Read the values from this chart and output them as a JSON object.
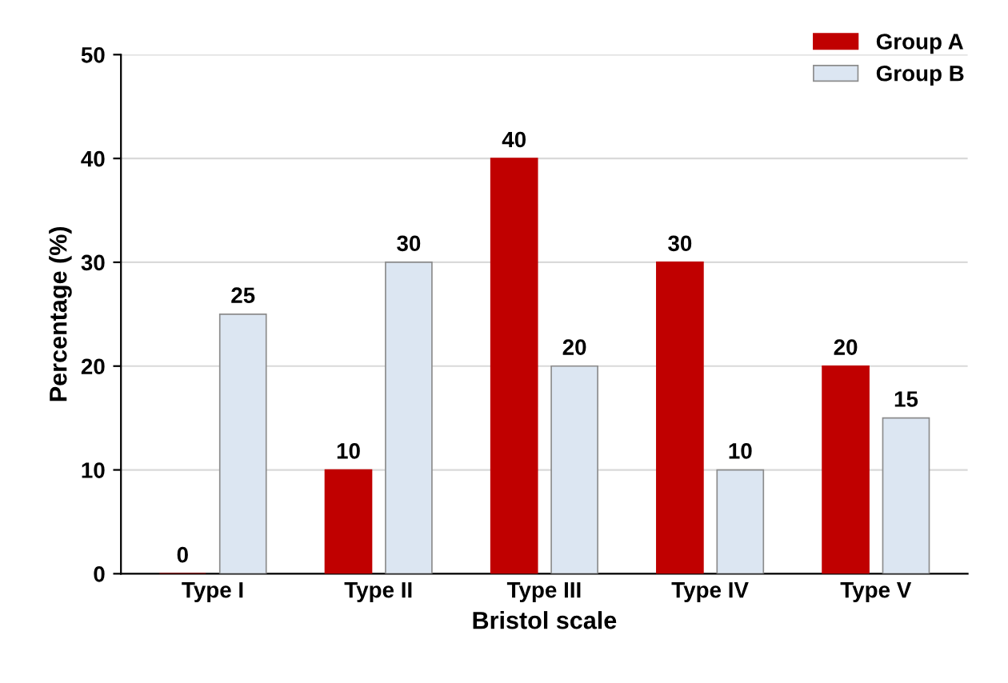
{
  "chart_data": {
    "type": "bar",
    "xlabel": "Bristol scale",
    "ylabel": "Percentage (%)",
    "categories": [
      "Type I",
      "Type II",
      "Type III",
      "Type IV",
      "Type V"
    ],
    "series": [
      {
        "name": "Group A",
        "color": "#c00000",
        "values": [
          0,
          10,
          40,
          30,
          20
        ]
      },
      {
        "name": "Group B",
        "color": "#dce6f2",
        "values": [
          25,
          30,
          20,
          10,
          15
        ]
      }
    ],
    "ylim": [
      0,
      50
    ],
    "yticks": [
      0,
      10,
      20,
      30,
      40,
      50
    ],
    "grid": "y",
    "legend": "top right",
    "data_labels": true
  }
}
